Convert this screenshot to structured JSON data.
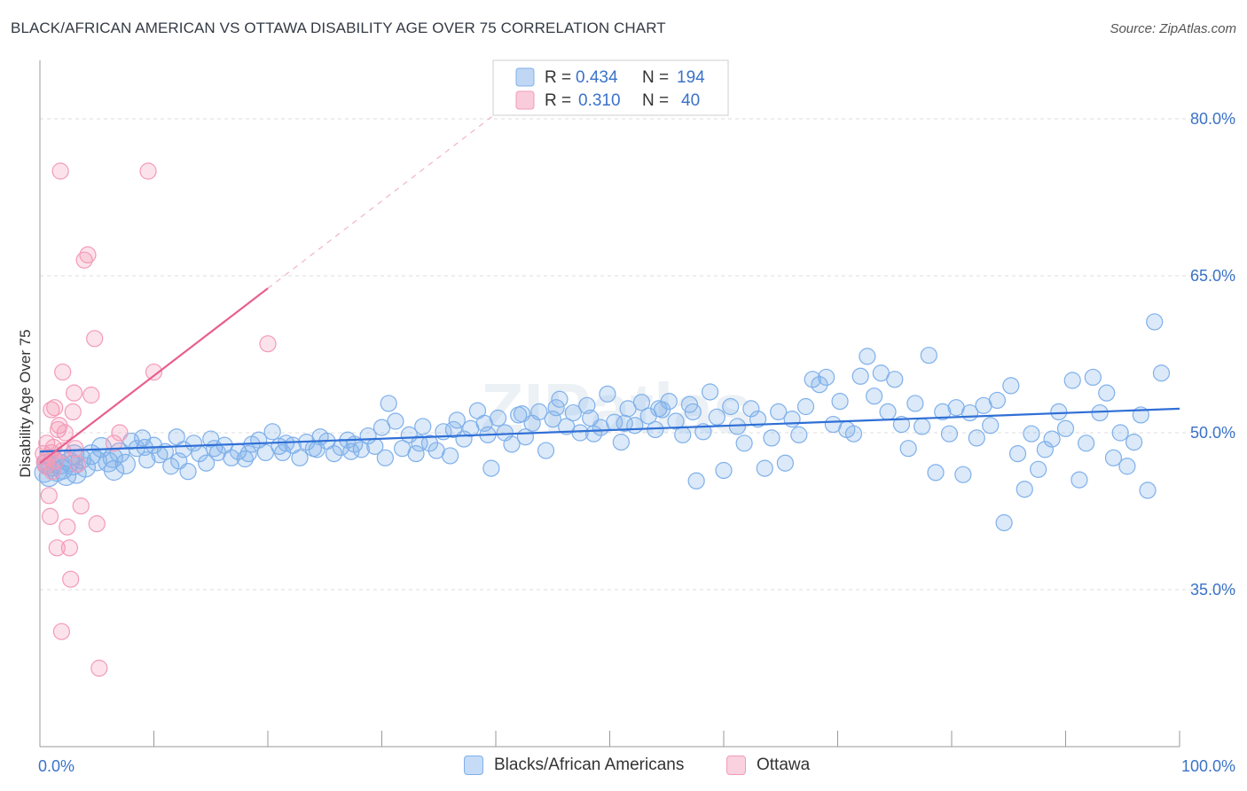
{
  "title": "BLACK/AFRICAN AMERICAN VS OTTAWA DISABILITY AGE OVER 75 CORRELATION CHART",
  "source": "Source: ZipAtlas.com",
  "watermark": "ZIPatlas",
  "legend_top": [
    {
      "r_label": "R =",
      "r_value": "0.434",
      "n_label": "N =",
      "n_value": "194",
      "color": "#7fb0ea"
    },
    {
      "r_label": "R =",
      "r_value": "0.310",
      "n_label": "N =",
      "n_value": "40",
      "color": "#f39ab8"
    }
  ],
  "legend_bottom": [
    {
      "label": "Blacks/African Americans",
      "color": "#7fb0ea"
    },
    {
      "label": "Ottawa",
      "color": "#f39ab8"
    }
  ],
  "chart_data": {
    "type": "scatter",
    "title": "BLACK/AFRICAN AMERICAN VS OTTAWA DISABILITY AGE OVER 75 CORRELATION CHART",
    "xlabel": "",
    "ylabel": "Disability Age Over 75",
    "xlim": [
      0,
      100
    ],
    "ylim": [
      20,
      85
    ],
    "x_tick_labels": [
      "0.0%",
      "100.0%"
    ],
    "y_ticks": [
      35,
      50,
      65,
      80
    ],
    "y_tick_labels": [
      "35.0%",
      "50.0%",
      "65.0%",
      "80.0%"
    ],
    "grid": true,
    "series": [
      {
        "name": "Blacks/African Americans",
        "color": "#7fb0ea",
        "line_color": "#2f6fd6",
        "trend": {
          "x": [
            0,
            100
          ],
          "y": [
            48.2,
            52.3
          ]
        },
        "points": [
          [
            0.4,
            46.2
          ],
          [
            0.6,
            47.0
          ],
          [
            0.8,
            45.8
          ],
          [
            1.0,
            46.8
          ],
          [
            1.2,
            47.4
          ],
          [
            1.5,
            46.3
          ],
          [
            1.8,
            47.0
          ],
          [
            2.0,
            46.5
          ],
          [
            2.3,
            45.9
          ],
          [
            2.6,
            47.2
          ],
          [
            2.9,
            46.9
          ],
          [
            3.2,
            46.1
          ],
          [
            3.6,
            47.5
          ],
          [
            4.0,
            46.7
          ],
          [
            4.5,
            47.9
          ],
          [
            5.0,
            47.3
          ],
          [
            5.4,
            48.6
          ],
          [
            6.0,
            47.2
          ],
          [
            6.5,
            46.4
          ],
          [
            7.0,
            48.1
          ],
          [
            7.5,
            47.0
          ],
          [
            8.0,
            49.2
          ],
          [
            8.5,
            48.5
          ],
          [
            9.0,
            49.5
          ],
          [
            9.4,
            47.4
          ],
          [
            10.0,
            48.8
          ],
          [
            10.5,
            47.9
          ],
          [
            11.0,
            48.2
          ],
          [
            11.5,
            46.8
          ],
          [
            12.0,
            49.6
          ],
          [
            12.6,
            48.4
          ],
          [
            13.0,
            46.3
          ],
          [
            13.5,
            49.0
          ],
          [
            14.0,
            48.0
          ],
          [
            14.6,
            47.1
          ],
          [
            15.0,
            49.4
          ],
          [
            15.6,
            48.1
          ],
          [
            16.2,
            48.8
          ],
          [
            16.8,
            47.6
          ],
          [
            17.4,
            48.2
          ],
          [
            18.0,
            47.5
          ],
          [
            18.6,
            48.9
          ],
          [
            19.2,
            49.3
          ],
          [
            19.8,
            48.1
          ],
          [
            20.4,
            50.1
          ],
          [
            21.0,
            48.7
          ],
          [
            21.6,
            49.0
          ],
          [
            22.2,
            48.8
          ],
          [
            22.8,
            47.6
          ],
          [
            23.4,
            49.1
          ],
          [
            24.0,
            48.5
          ],
          [
            24.6,
            49.6
          ],
          [
            25.2,
            49.2
          ],
          [
            25.8,
            48.0
          ],
          [
            26.4,
            48.6
          ],
          [
            27.0,
            49.3
          ],
          [
            27.6,
            48.9
          ],
          [
            28.2,
            48.4
          ],
          [
            28.8,
            49.7
          ],
          [
            29.4,
            48.7
          ],
          [
            30.0,
            50.5
          ],
          [
            30.6,
            52.8
          ],
          [
            31.2,
            51.1
          ],
          [
            31.8,
            48.5
          ],
          [
            32.4,
            49.8
          ],
          [
            33.0,
            48.0
          ],
          [
            33.6,
            50.6
          ],
          [
            34.2,
            49.0
          ],
          [
            34.8,
            48.3
          ],
          [
            35.4,
            50.1
          ],
          [
            36.0,
            47.8
          ],
          [
            36.6,
            51.2
          ],
          [
            37.2,
            49.4
          ],
          [
            37.8,
            50.4
          ],
          [
            38.4,
            52.1
          ],
          [
            39.0,
            50.9
          ],
          [
            39.6,
            46.6
          ],
          [
            40.2,
            51.4
          ],
          [
            40.8,
            50.0
          ],
          [
            41.4,
            48.9
          ],
          [
            42.0,
            51.7
          ],
          [
            42.6,
            49.6
          ],
          [
            43.2,
            50.9
          ],
          [
            43.8,
            52.0
          ],
          [
            44.4,
            48.3
          ],
          [
            45.0,
            51.3
          ],
          [
            45.6,
            53.2
          ],
          [
            46.2,
            50.6
          ],
          [
            46.8,
            51.9
          ],
          [
            47.4,
            50.0
          ],
          [
            48.0,
            52.6
          ],
          [
            48.6,
            49.9
          ],
          [
            49.2,
            50.5
          ],
          [
            49.8,
            53.7
          ],
          [
            50.4,
            51.0
          ],
          [
            51.0,
            49.1
          ],
          [
            51.6,
            52.3
          ],
          [
            52.2,
            50.7
          ],
          [
            52.8,
            52.9
          ],
          [
            53.4,
            51.6
          ],
          [
            54.0,
            50.3
          ],
          [
            54.6,
            52.2
          ],
          [
            55.2,
            53.0
          ],
          [
            55.8,
            51.1
          ],
          [
            56.4,
            49.8
          ],
          [
            57.0,
            52.7
          ],
          [
            57.6,
            45.4
          ],
          [
            58.2,
            50.1
          ],
          [
            58.8,
            53.9
          ],
          [
            59.4,
            51.5
          ],
          [
            60.0,
            46.4
          ],
          [
            60.6,
            52.5
          ],
          [
            61.2,
            50.6
          ],
          [
            61.8,
            49.0
          ],
          [
            62.4,
            52.3
          ],
          [
            63.0,
            51.3
          ],
          [
            63.6,
            46.6
          ],
          [
            64.2,
            49.5
          ],
          [
            64.8,
            52.0
          ],
          [
            65.4,
            47.1
          ],
          [
            66.0,
            51.3
          ],
          [
            66.6,
            49.8
          ],
          [
            67.2,
            52.5
          ],
          [
            67.8,
            55.1
          ],
          [
            68.4,
            54.6
          ],
          [
            69.0,
            55.3
          ],
          [
            69.6,
            50.8
          ],
          [
            70.2,
            53.0
          ],
          [
            70.8,
            50.3
          ],
          [
            71.4,
            49.9
          ],
          [
            72.0,
            55.4
          ],
          [
            72.6,
            57.3
          ],
          [
            73.2,
            53.5
          ],
          [
            73.8,
            55.7
          ],
          [
            74.4,
            52.0
          ],
          [
            75.0,
            55.1
          ],
          [
            75.6,
            50.8
          ],
          [
            76.2,
            48.5
          ],
          [
            76.8,
            52.8
          ],
          [
            77.4,
            50.6
          ],
          [
            78.0,
            57.4
          ],
          [
            78.6,
            46.2
          ],
          [
            79.2,
            52.0
          ],
          [
            79.8,
            49.9
          ],
          [
            80.4,
            52.4
          ],
          [
            81.0,
            46.0
          ],
          [
            81.6,
            51.9
          ],
          [
            82.2,
            49.5
          ],
          [
            82.8,
            52.6
          ],
          [
            83.4,
            50.7
          ],
          [
            84.0,
            53.1
          ],
          [
            84.6,
            41.4
          ],
          [
            85.2,
            54.5
          ],
          [
            85.8,
            48.0
          ],
          [
            86.4,
            44.6
          ],
          [
            87.0,
            49.9
          ],
          [
            87.6,
            46.5
          ],
          [
            88.2,
            48.4
          ],
          [
            88.8,
            49.4
          ],
          [
            89.4,
            52.0
          ],
          [
            90.0,
            50.4
          ],
          [
            90.6,
            55.0
          ],
          [
            91.2,
            45.5
          ],
          [
            91.8,
            49.0
          ],
          [
            92.4,
            55.3
          ],
          [
            93.0,
            51.9
          ],
          [
            93.6,
            53.8
          ],
          [
            94.2,
            47.6
          ],
          [
            94.8,
            50.0
          ],
          [
            95.4,
            46.8
          ],
          [
            96.0,
            49.1
          ],
          [
            96.6,
            51.7
          ],
          [
            97.2,
            44.5
          ],
          [
            97.8,
            60.6
          ],
          [
            98.4,
            55.7
          ],
          [
            3.0,
            47.9
          ],
          [
            6.4,
            47.6
          ],
          [
            9.2,
            48.6
          ],
          [
            12.2,
            47.3
          ],
          [
            15.3,
            48.5
          ],
          [
            18.3,
            48.0
          ],
          [
            21.3,
            48.1
          ],
          [
            24.3,
            48.4
          ],
          [
            27.3,
            48.2
          ],
          [
            30.3,
            47.6
          ],
          [
            33.3,
            49.0
          ],
          [
            36.3,
            50.3
          ],
          [
            39.3,
            49.8
          ],
          [
            42.3,
            51.8
          ],
          [
            45.3,
            52.4
          ],
          [
            48.3,
            51.4
          ],
          [
            51.3,
            50.9
          ],
          [
            54.3,
            52.3
          ],
          [
            57.3,
            52.0
          ]
        ]
      },
      {
        "name": "Ottawa",
        "color": "#f39ab8",
        "line_color": "#e85f8e",
        "trend": {
          "x": [
            0,
            20
          ],
          "y": [
            47.1,
            63.8
          ]
        },
        "points": [
          [
            0.3,
            48.0
          ],
          [
            0.5,
            46.8
          ],
          [
            0.6,
            49.0
          ],
          [
            0.7,
            47.6
          ],
          [
            0.8,
            44.0
          ],
          [
            0.9,
            42.0
          ],
          [
            1.0,
            52.2
          ],
          [
            1.1,
            46.3
          ],
          [
            1.2,
            48.6
          ],
          [
            1.3,
            52.4
          ],
          [
            1.4,
            47.3
          ],
          [
            1.5,
            39.0
          ],
          [
            1.6,
            50.3
          ],
          [
            1.7,
            50.7
          ],
          [
            1.8,
            75.0
          ],
          [
            1.9,
            31.0
          ],
          [
            2.0,
            55.8
          ],
          [
            2.2,
            50.0
          ],
          [
            2.4,
            41.0
          ],
          [
            2.6,
            39.0
          ],
          [
            2.7,
            36.0
          ],
          [
            2.9,
            52.0
          ],
          [
            3.0,
            53.8
          ],
          [
            3.1,
            48.5
          ],
          [
            3.3,
            47.0
          ],
          [
            3.6,
            43.0
          ],
          [
            3.9,
            66.5
          ],
          [
            4.2,
            67.0
          ],
          [
            4.5,
            53.6
          ],
          [
            4.8,
            59.0
          ],
          [
            5.0,
            41.3
          ],
          [
            5.2,
            27.5
          ],
          [
            6.5,
            49.0
          ],
          [
            7.0,
            50.0
          ],
          [
            9.5,
            75.0
          ],
          [
            10.0,
            55.8
          ],
          [
            20.0,
            58.5
          ],
          [
            0.4,
            47.2
          ],
          [
            1.0,
            48.1
          ],
          [
            2.0,
            48.3
          ]
        ]
      }
    ]
  }
}
